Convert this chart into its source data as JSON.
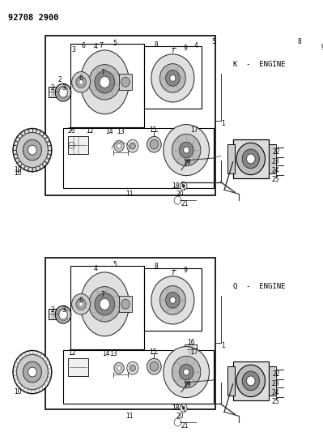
{
  "title": "92708 2900",
  "bg_color": "#ffffff",
  "text_color": "#000000",
  "line_color": "#333333",
  "k_engine_label": "K  -  ENGINE",
  "q_engine_label": "Q  -  ENGINE",
  "figsize": [
    3.99,
    5.33
  ],
  "dpi": 100
}
